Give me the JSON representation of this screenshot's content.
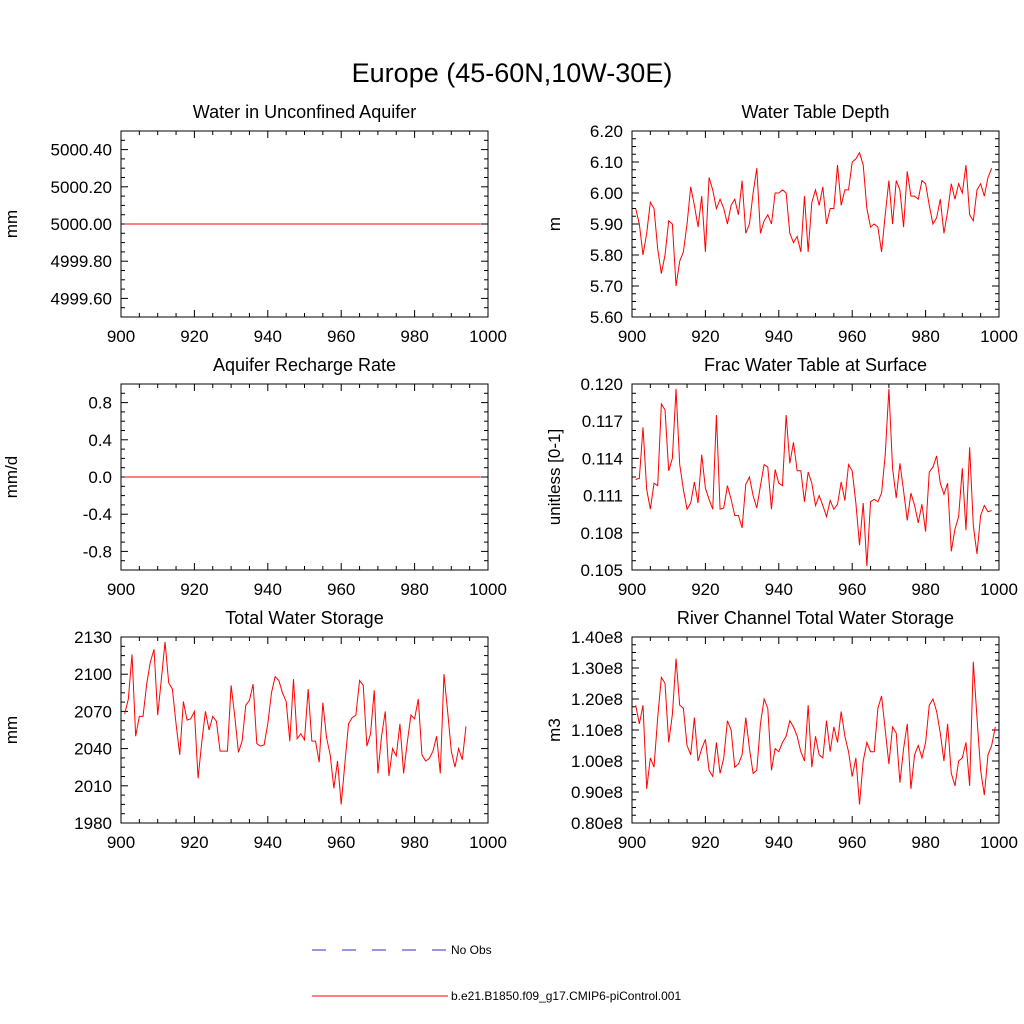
{
  "page_title": "Europe (45-60N,10W-30E)",
  "legend": {
    "items": [
      {
        "label": "No Obs",
        "color": "#3030c0",
        "dashed": true
      },
      {
        "label": "b.e21.B1850.f09_g17.CMIP6-piControl.001",
        "color": "#ff0000",
        "dashed": false
      }
    ]
  },
  "chart_data": [
    {
      "type": "line",
      "title": "Water in Unconfined Aquifer",
      "ylabel": "mm",
      "xlim": [
        900,
        1000
      ],
      "ylim": [
        4999.5,
        5000.5
      ],
      "xticks": [
        900,
        920,
        940,
        960,
        980,
        1000
      ],
      "xtick_labels": [
        "900",
        "920",
        "940",
        "960",
        "980",
        "1000"
      ],
      "yticks": [
        4999.6,
        4999.8,
        5000.0,
        5000.2,
        5000.4
      ],
      "ytick_labels": [
        "4999.60",
        "4999.80",
        "5000.00",
        "5000.20",
        "5000.40"
      ],
      "x_start": 901,
      "values": [
        5000,
        5000,
        5000,
        5000,
        5000,
        5000,
        5000,
        5000,
        5000,
        5000,
        5000,
        5000,
        5000,
        5000,
        5000,
        5000,
        5000,
        5000,
        5000,
        5000,
        5000,
        5000,
        5000,
        5000,
        5000,
        5000,
        5000,
        5000,
        5000,
        5000,
        5000,
        5000,
        5000,
        5000,
        5000,
        5000,
        5000,
        5000,
        5000,
        5000,
        5000,
        5000,
        5000,
        5000,
        5000,
        5000,
        5000,
        5000,
        5000,
        5000,
        5000,
        5000,
        5000,
        5000,
        5000,
        5000,
        5000,
        5000,
        5000,
        5000,
        5000,
        5000,
        5000,
        5000,
        5000,
        5000,
        5000,
        5000,
        5000,
        5000,
        5000,
        5000,
        5000,
        5000,
        5000,
        5000,
        5000,
        5000,
        5000,
        5000,
        5000,
        5000,
        5000,
        5000,
        5000,
        5000,
        5000,
        5000,
        5000,
        5000,
        5000,
        5000,
        5000,
        5000,
        5000,
        5000,
        5000,
        5000
      ],
      "color": "#ff0000"
    },
    {
      "type": "line",
      "title": "Water Table Depth",
      "ylabel": "m",
      "xlim": [
        900,
        1000
      ],
      "ylim": [
        5.6,
        6.2
      ],
      "xticks": [
        900,
        920,
        940,
        960,
        980,
        1000
      ],
      "xtick_labels": [
        "900",
        "920",
        "940",
        "960",
        "980",
        "1000"
      ],
      "yticks": [
        5.6,
        5.7,
        5.8,
        5.9,
        6.0,
        6.1,
        6.2
      ],
      "ytick_labels": [
        "5.60",
        "5.70",
        "5.80",
        "5.90",
        "6.00",
        "6.10",
        "6.20"
      ],
      "x_start": 901,
      "values": [
        5.95,
        5.9,
        5.8,
        5.87,
        5.97,
        5.95,
        5.82,
        5.74,
        5.8,
        5.91,
        5.9,
        5.7,
        5.78,
        5.81,
        5.9,
        6.02,
        5.96,
        5.89,
        5.99,
        5.81,
        6.05,
        6.01,
        5.95,
        5.98,
        5.95,
        5.9,
        5.96,
        5.98,
        5.93,
        6.04,
        5.87,
        5.9,
        6.0,
        6.08,
        5.87,
        5.91,
        5.93,
        5.9,
        6.0,
        6.0,
        6.01,
        6.0,
        5.87,
        5.84,
        5.86,
        5.81,
        5.99,
        5.81,
        5.97,
        6.01,
        5.96,
        6.02,
        5.9,
        5.95,
        5.95,
        6.09,
        5.96,
        6.01,
        6.01,
        6.1,
        6.11,
        6.13,
        6.09,
        5.95,
        5.89,
        5.9,
        5.89,
        5.81,
        5.93,
        6.04,
        5.9,
        6.04,
        6.01,
        5.89,
        6.07,
        5.99,
        5.99,
        5.98,
        6.04,
        6.03,
        5.96,
        5.9,
        5.92,
        5.98,
        5.87,
        5.94,
        6.03,
        5.98,
        6.03,
        6.0,
        6.09,
        5.93,
        5.91,
        6.01,
        6.03,
        5.99,
        6.05,
        6.08
      ],
      "color": "#ff0000"
    },
    {
      "type": "line",
      "title": "Aquifer Recharge Rate",
      "ylabel": "mm/d",
      "xlim": [
        900,
        1000
      ],
      "ylim": [
        -1.0,
        1.0
      ],
      "xticks": [
        900,
        920,
        940,
        960,
        980,
        1000
      ],
      "xtick_labels": [
        "900",
        "920",
        "940",
        "960",
        "980",
        "1000"
      ],
      "yticks": [
        -0.8,
        -0.4,
        0.0,
        0.4,
        0.8
      ],
      "ytick_labels": [
        "-0.8",
        "-0.4",
        "0.0",
        "0.4",
        "0.8"
      ],
      "x_start": 901,
      "values": [
        0,
        0,
        0,
        0,
        0,
        0,
        0,
        0,
        0,
        0,
        0,
        0,
        0,
        0,
        0,
        0,
        0,
        0,
        0,
        0,
        0,
        0,
        0,
        0,
        0,
        0,
        0,
        0,
        0,
        0,
        0,
        0,
        0,
        0,
        0,
        0,
        0,
        0,
        0,
        0,
        0,
        0,
        0,
        0,
        0,
        0,
        0,
        0,
        0,
        0,
        0,
        0,
        0,
        0,
        0,
        0,
        0,
        0,
        0,
        0,
        0,
        0,
        0,
        0,
        0,
        0,
        0,
        0,
        0,
        0,
        0,
        0,
        0,
        0,
        0,
        0,
        0,
        0,
        0,
        0,
        0,
        0,
        0,
        0,
        0,
        0,
        0,
        0,
        0,
        0,
        0,
        0,
        0,
        0,
        0,
        0,
        0,
        0
      ],
      "color": "#ff0000"
    },
    {
      "type": "line",
      "title": "Frac Water Table at Surface",
      "ylabel": "unitless [0-1]",
      "xlim": [
        900,
        1000
      ],
      "ylim": [
        0.105,
        0.12
      ],
      "xticks": [
        900,
        920,
        940,
        960,
        980,
        1000
      ],
      "xtick_labels": [
        "900",
        "920",
        "940",
        "960",
        "980",
        "1000"
      ],
      "yticks": [
        0.105,
        0.108,
        0.111,
        0.114,
        0.117,
        0.12
      ],
      "ytick_labels": [
        "0.105",
        "0.108",
        "0.111",
        "0.114",
        "0.117",
        "0.120"
      ],
      "x_start": 901,
      "values": [
        0.1123,
        0.1124,
        0.1165,
        0.1115,
        0.1099,
        0.112,
        0.1118,
        0.1184,
        0.1179,
        0.113,
        0.114,
        0.1196,
        0.1135,
        0.1115,
        0.1099,
        0.1104,
        0.1121,
        0.1104,
        0.1143,
        0.1116,
        0.1107,
        0.1099,
        0.1175,
        0.1099,
        0.11,
        0.1118,
        0.1107,
        0.1094,
        0.1094,
        0.1084,
        0.1119,
        0.1125,
        0.111,
        0.11,
        0.1118,
        0.1135,
        0.1133,
        0.1099,
        0.1131,
        0.112,
        0.1118,
        0.1175,
        0.1136,
        0.1153,
        0.113,
        0.113,
        0.1105,
        0.1129,
        0.112,
        0.1102,
        0.111,
        0.1102,
        0.1093,
        0.1106,
        0.1099,
        0.1103,
        0.1121,
        0.1106,
        0.1135,
        0.113,
        0.1104,
        0.107,
        0.1104,
        0.1053,
        0.1105,
        0.1107,
        0.1105,
        0.1112,
        0.1143,
        0.1196,
        0.1132,
        0.1108,
        0.1136,
        0.1114,
        0.109,
        0.1112,
        0.1102,
        0.1088,
        0.1103,
        0.1081,
        0.1129,
        0.1133,
        0.1142,
        0.112,
        0.1111,
        0.112,
        0.1065,
        0.1083,
        0.1093,
        0.1132,
        0.1082,
        0.1149,
        0.1086,
        0.1063,
        0.1094,
        0.1102,
        0.1097,
        0.1098
      ],
      "color": "#ff0000"
    },
    {
      "type": "line",
      "title": "Total Water Storage",
      "ylabel": "mm",
      "xlim": [
        900,
        1000
      ],
      "ylim": [
        1980,
        2130
      ],
      "xticks": [
        900,
        920,
        940,
        960,
        980,
        1000
      ],
      "xtick_labels": [
        "900",
        "920",
        "940",
        "960",
        "980",
        "1000"
      ],
      "yticks": [
        1980,
        2010,
        2040,
        2070,
        2100,
        2130
      ],
      "ytick_labels": [
        "1980",
        "2010",
        "2040",
        "2070",
        "2100",
        "2130"
      ],
      "x_start": 901,
      "values": [
        2068,
        2080,
        2116,
        2050,
        2066,
        2066,
        2092,
        2110,
        2120,
        2067,
        2096,
        2126,
        2093,
        2088,
        2060,
        2035,
        2078,
        2063,
        2064,
        2070,
        2016,
        2045,
        2070,
        2055,
        2066,
        2062,
        2038,
        2038,
        2038,
        2091,
        2066,
        2037,
        2046,
        2075,
        2079,
        2092,
        2044,
        2042,
        2043,
        2060,
        2085,
        2098,
        2095,
        2085,
        2078,
        2046,
        2096,
        2048,
        2052,
        2047,
        2088,
        2046,
        2046,
        2029,
        2077,
        2049,
        2035,
        2008,
        2030,
        1995,
        2028,
        2060,
        2065,
        2067,
        2095,
        2091,
        2042,
        2052,
        2087,
        2020,
        2050,
        2070,
        2018,
        2040,
        2034,
        2060,
        2020,
        2045,
        2067,
        2064,
        2080,
        2035,
        2030,
        2032,
        2038,
        2050,
        2020,
        2100,
        2070,
        2038,
        2025,
        2040,
        2031,
        2058
      ],
      "color": "#ff0000"
    },
    {
      "type": "line",
      "title": "River Channel Total Water Storage",
      "ylabel": "m3",
      "xlim": [
        900,
        1000
      ],
      "ylim": [
        80000000.0,
        140000000.0
      ],
      "xticks": [
        900,
        920,
        940,
        960,
        980,
        1000
      ],
      "xtick_labels": [
        "900",
        "920",
        "940",
        "960",
        "980",
        "1000"
      ],
      "yticks": [
        80000000.0,
        90000000.0,
        100000000.0,
        110000000.0,
        120000000.0,
        130000000.0,
        140000000.0
      ],
      "ytick_labels": [
        "0.80e8",
        "0.90e8",
        "1.00e8",
        "1.10e8",
        "1.20e8",
        "1.30e8",
        "1.40e8"
      ],
      "x_start": 901,
      "values": [
        118000000.0,
        112000000.0,
        118000000.0,
        91000000.0,
        101000000.0,
        98000000.0,
        114000000.0,
        127000000.0,
        125000000.0,
        106000000.0,
        115000000.0,
        133000000.0,
        118000000.0,
        117000000.0,
        105000000.0,
        102000000.0,
        114000000.0,
        100000000.0,
        104000000.0,
        107000000.0,
        97000000.0,
        95000000.0,
        106000000.0,
        96000000.0,
        101000000.0,
        113000000.0,
        110000000.0,
        98000000.0,
        99000000.0,
        102000000.0,
        114000000.0,
        104000000.0,
        96000000.0,
        97000000.0,
        112000000.0,
        120000000.0,
        117000000.0,
        97000000.0,
        104000000.0,
        103000000.0,
        106000000.0,
        108000000.0,
        113000000.0,
        111000000.0,
        108000000.0,
        103000000.0,
        100000000.0,
        118000000.0,
        98000000.0,
        108000000.0,
        102000000.0,
        101000000.0,
        113000000.0,
        103000000.0,
        111000000.0,
        106000000.0,
        116000000.0,
        108000000.0,
        103000000.0,
        95000000.0,
        101000000.0,
        86000000.0,
        100000000.0,
        106000000.0,
        103000000.0,
        103000000.0,
        117000000.0,
        121000000.0,
        110000000.0,
        99000000.0,
        111000000.0,
        109000000.0,
        93000000.0,
        104000000.0,
        112000000.0,
        91000000.0,
        102000000.0,
        105000000.0,
        101000000.0,
        106000000.0,
        118000000.0,
        120000000.0,
        116000000.0,
        109000000.0,
        100000000.0,
        112000000.0,
        96000000.0,
        92000000.0,
        100000000.0,
        101000000.0,
        106000000.0,
        92000000.0,
        132000000.0,
        114000000.0,
        97000000.0,
        89000000.0,
        102000000.0,
        105000000.0,
        111000000.0
      ],
      "color": "#ff0000"
    }
  ]
}
